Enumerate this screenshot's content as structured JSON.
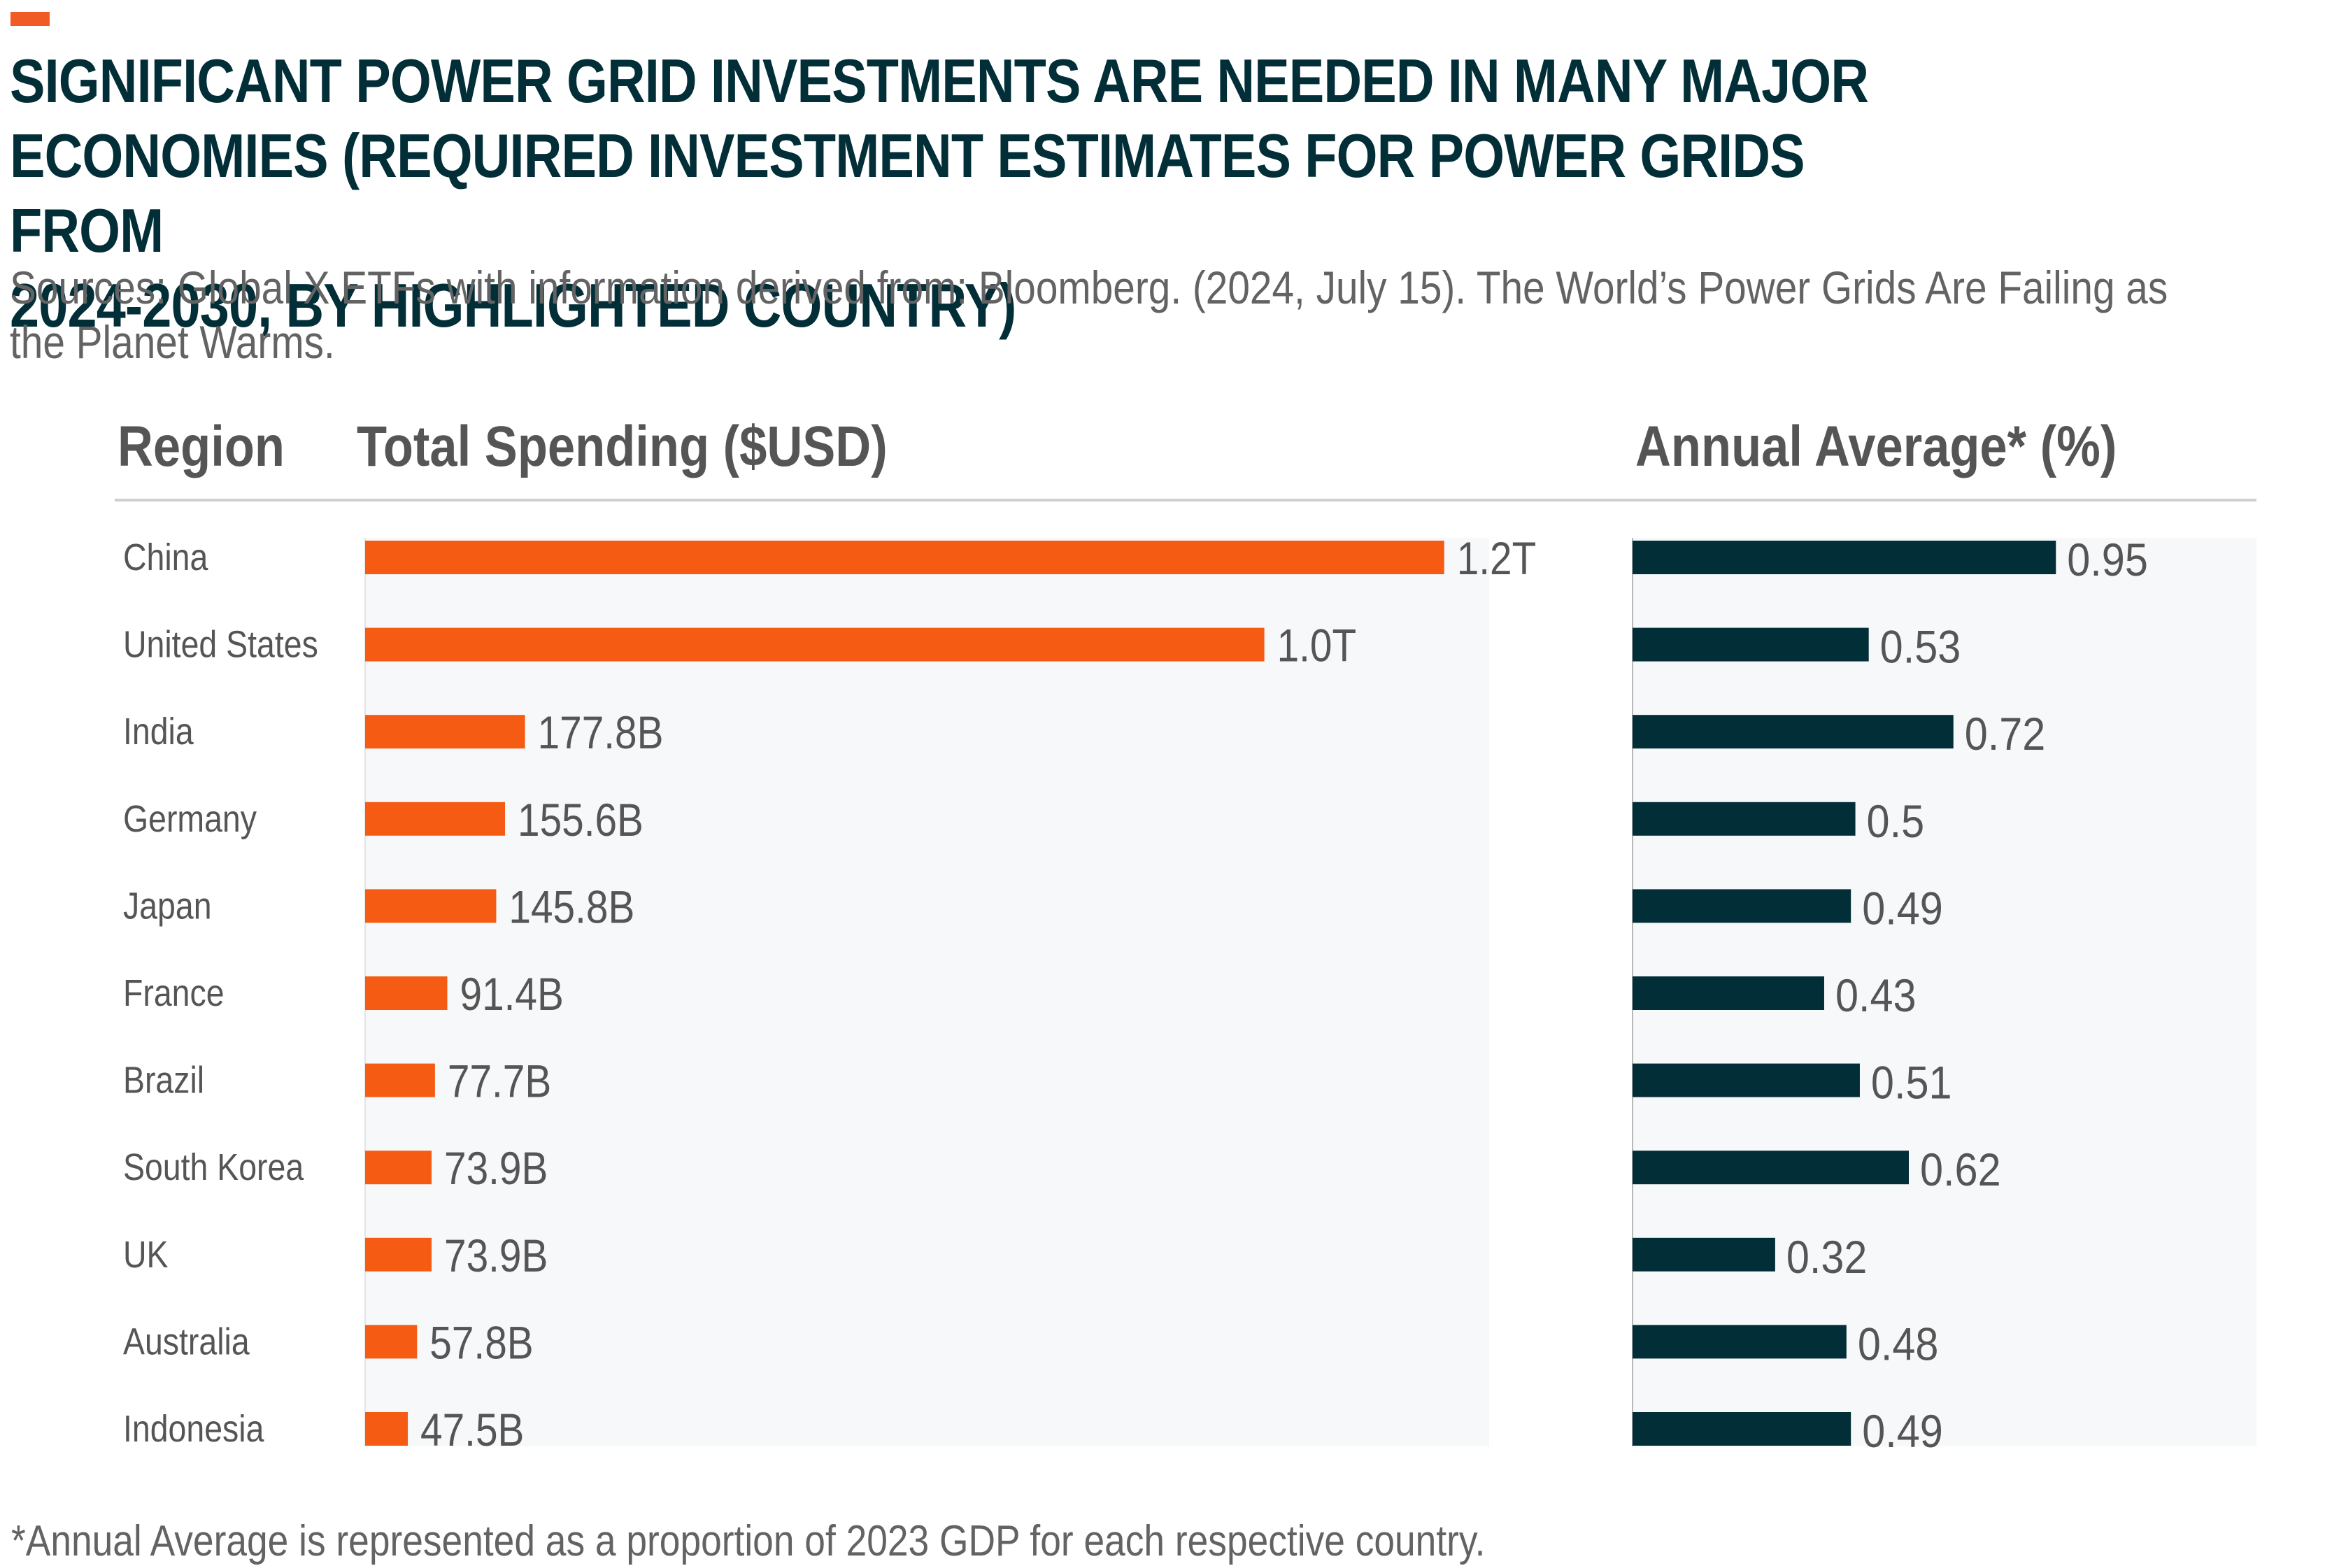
{
  "header": {
    "title": "SIGNIFICANT POWER GRID INVESTMENTS ARE NEEDED IN MANY MAJOR\nECONOMIES (REQUIRED INVESTMENT ESTIMATES FOR POWER GRIDS FROM\n2024-2030, BY HIGHLIGHTED COUNTRY)",
    "subtitle": "Sources: Global X ETFs with information derived from: Bloomberg. (2024, July 15). The World’s Power Grids Are Failing as the Planet Warms."
  },
  "columns": {
    "region": "Region",
    "spending": "Total Spending ($USD)",
    "annual": "Annual Average* (%)"
  },
  "footnote": "*Annual Average is represented as a proportion of 2023 GDP for each respective country.",
  "colors": {
    "accent": "#f15a22",
    "spending_bar": "#f55b12",
    "annual_bar": "#022e38",
    "panel_bg": "#f7f8fa",
    "label_text": "#555555"
  },
  "chart_data": [
    {
      "type": "bar",
      "orientation": "horizontal",
      "title": "Total Spending ($USD)",
      "categories": [
        "China",
        "United States",
        "India",
        "Germany",
        "Japan",
        "France",
        "Brazil",
        "South Korea",
        "UK",
        "Australia",
        "Indonesia"
      ],
      "values": [
        1200,
        1000,
        177.8,
        155.6,
        145.8,
        91.4,
        77.7,
        73.9,
        73.9,
        57.8,
        47.5
      ],
      "value_unit": "billion USD",
      "data_labels": [
        "1.2T",
        "1.0T",
        "177.8B",
        "155.6B",
        "145.8B",
        "91.4B",
        "77.7B",
        "73.9B",
        "73.9B",
        "57.8B",
        "47.5B"
      ],
      "xlim": [
        0,
        1250
      ],
      "grid": false,
      "legend": "none"
    },
    {
      "type": "bar",
      "orientation": "horizontal",
      "title": "Annual Average* (%)",
      "categories": [
        "China",
        "United States",
        "India",
        "Germany",
        "Japan",
        "France",
        "Brazil",
        "South Korea",
        "UK",
        "Australia",
        "Indonesia"
      ],
      "values": [
        0.95,
        0.53,
        0.72,
        0.5,
        0.49,
        0.43,
        0.51,
        0.62,
        0.32,
        0.48,
        0.49
      ],
      "data_labels": [
        "0.95",
        "0.53",
        "0.72",
        "0.5",
        "0.49",
        "0.43",
        "0.51",
        "0.62",
        "0.32",
        "0.48",
        "0.49"
      ],
      "xlim": [
        0,
        1.4
      ],
      "grid": false,
      "legend": "none"
    }
  ]
}
